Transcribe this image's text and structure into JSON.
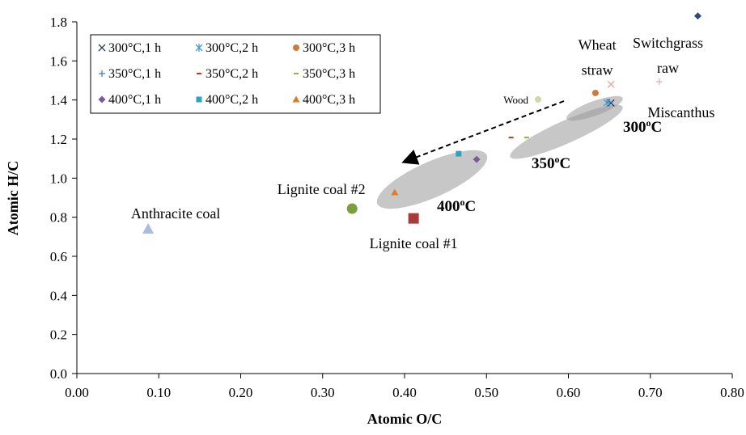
{
  "chart_data": {
    "type": "scatter",
    "x_label": "Atomic O/C",
    "y_label": "Atomic H/C",
    "xlim": [
      0,
      0.8
    ],
    "ylim": [
      0,
      1.8
    ],
    "xticks": [
      {
        "value": 0,
        "label": "0.00"
      },
      {
        "value": 0.1,
        "label": "0.10"
      },
      {
        "value": 0.2,
        "label": "0.20"
      },
      {
        "value": 0.3,
        "label": "0.30"
      },
      {
        "value": 0.4,
        "label": "0.40"
      },
      {
        "value": 0.5,
        "label": "0.50"
      },
      {
        "value": 0.6,
        "label": "0.60"
      },
      {
        "value": 0.7,
        "label": "0.70"
      },
      {
        "value": 0.8,
        "label": "0.80"
      }
    ],
    "yticks": [
      {
        "value": 0,
        "label": "0.0"
      },
      {
        "value": 0.2,
        "label": "0.2"
      },
      {
        "value": 0.4,
        "label": "0.4"
      },
      {
        "value": 0.6,
        "label": "0.6"
      },
      {
        "value": 0.8,
        "label": "0.8"
      },
      {
        "value": 1.0,
        "label": "1.0"
      },
      {
        "value": 1.2,
        "label": "1.2"
      },
      {
        "value": 1.4,
        "label": "1.4"
      },
      {
        "value": 1.6,
        "label": "1.6"
      },
      {
        "value": 1.8,
        "label": "1.8"
      }
    ],
    "series": [
      {
        "name": "300°C,1 h",
        "color": "#1f3864",
        "marker": "x",
        "x": [
          0.652
        ],
        "y": [
          1.385
        ]
      },
      {
        "name": "300°C,2 h",
        "color": "#4a9bd1",
        "marker": "star",
        "x": [
          0.647
        ],
        "y": [
          1.386
        ]
      },
      {
        "name": "300°C,3 h",
        "color": "#d07a3a",
        "marker": "circle",
        "x": [
          0.633
        ],
        "y": [
          1.436
        ]
      },
      {
        "name": "350°C,1 h",
        "color": "#4a7fc1",
        "marker": "plus",
        "x": [
          0.65
        ],
        "y": [
          1.39
        ]
      },
      {
        "name": "350°C,2 h",
        "color": "#c0392b",
        "marker": "dash",
        "x": [
          0.53
        ],
        "y": [
          1.208
        ]
      },
      {
        "name": "350°C,3 h",
        "color": "#8bb34a",
        "marker": "dash",
        "x": [
          0.549
        ],
        "y": [
          1.208
        ]
      },
      {
        "name": "400°C,1 h",
        "color": "#7a5a9a",
        "marker": "diamond",
        "x": [
          0.488
        ],
        "y": [
          1.096
        ]
      },
      {
        "name": "400°C,2 h",
        "color": "#2ea3c4",
        "marker": "square",
        "x": [
          0.466
        ],
        "y": [
          1.125
        ]
      },
      {
        "name": "400°C,3 h",
        "color": "#e07b2a",
        "marker": "triangle",
        "x": [
          0.388
        ],
        "y": [
          0.927
        ]
      }
    ],
    "points": [
      {
        "label": [
          "Wood"
        ],
        "color": "#c9dba6",
        "marker": "circle",
        "x": 0.563,
        "y": 1.403
      },
      {
        "label": [
          "Wheat",
          "straw"
        ],
        "color": "#e5a0a0",
        "marker": "x",
        "x": 0.652,
        "y": 1.48
      },
      {
        "label": [
          "Switchgrass",
          "raw"
        ],
        "color": "#2c4d7a",
        "marker": "diamond",
        "x": 0.758,
        "y": 1.83
      },
      {
        "label": [
          "Miscanthus"
        ],
        "color": "#e0b0b8",
        "marker": "plus",
        "x": 0.711,
        "y": 1.494
      },
      {
        "label": [
          "Lignite coal #2"
        ],
        "color": "#77a03a",
        "marker": "bigcircle",
        "x": 0.336,
        "y": 0.844
      },
      {
        "label": [
          "Lignite coal #1"
        ],
        "color": "#a83a3a",
        "marker": "bigsquare",
        "x": 0.411,
        "y": 0.794
      },
      {
        "label": [
          "Anthracite coal"
        ],
        "color": "#a9bde0",
        "marker": "bigtriangle",
        "x": 0.087,
        "y": 0.741
      }
    ],
    "annotations": [
      [
        "300",
        "o",
        "C"
      ],
      [
        "350",
        "o",
        "C"
      ],
      [
        "400",
        "o",
        "C"
      ]
    ]
  }
}
